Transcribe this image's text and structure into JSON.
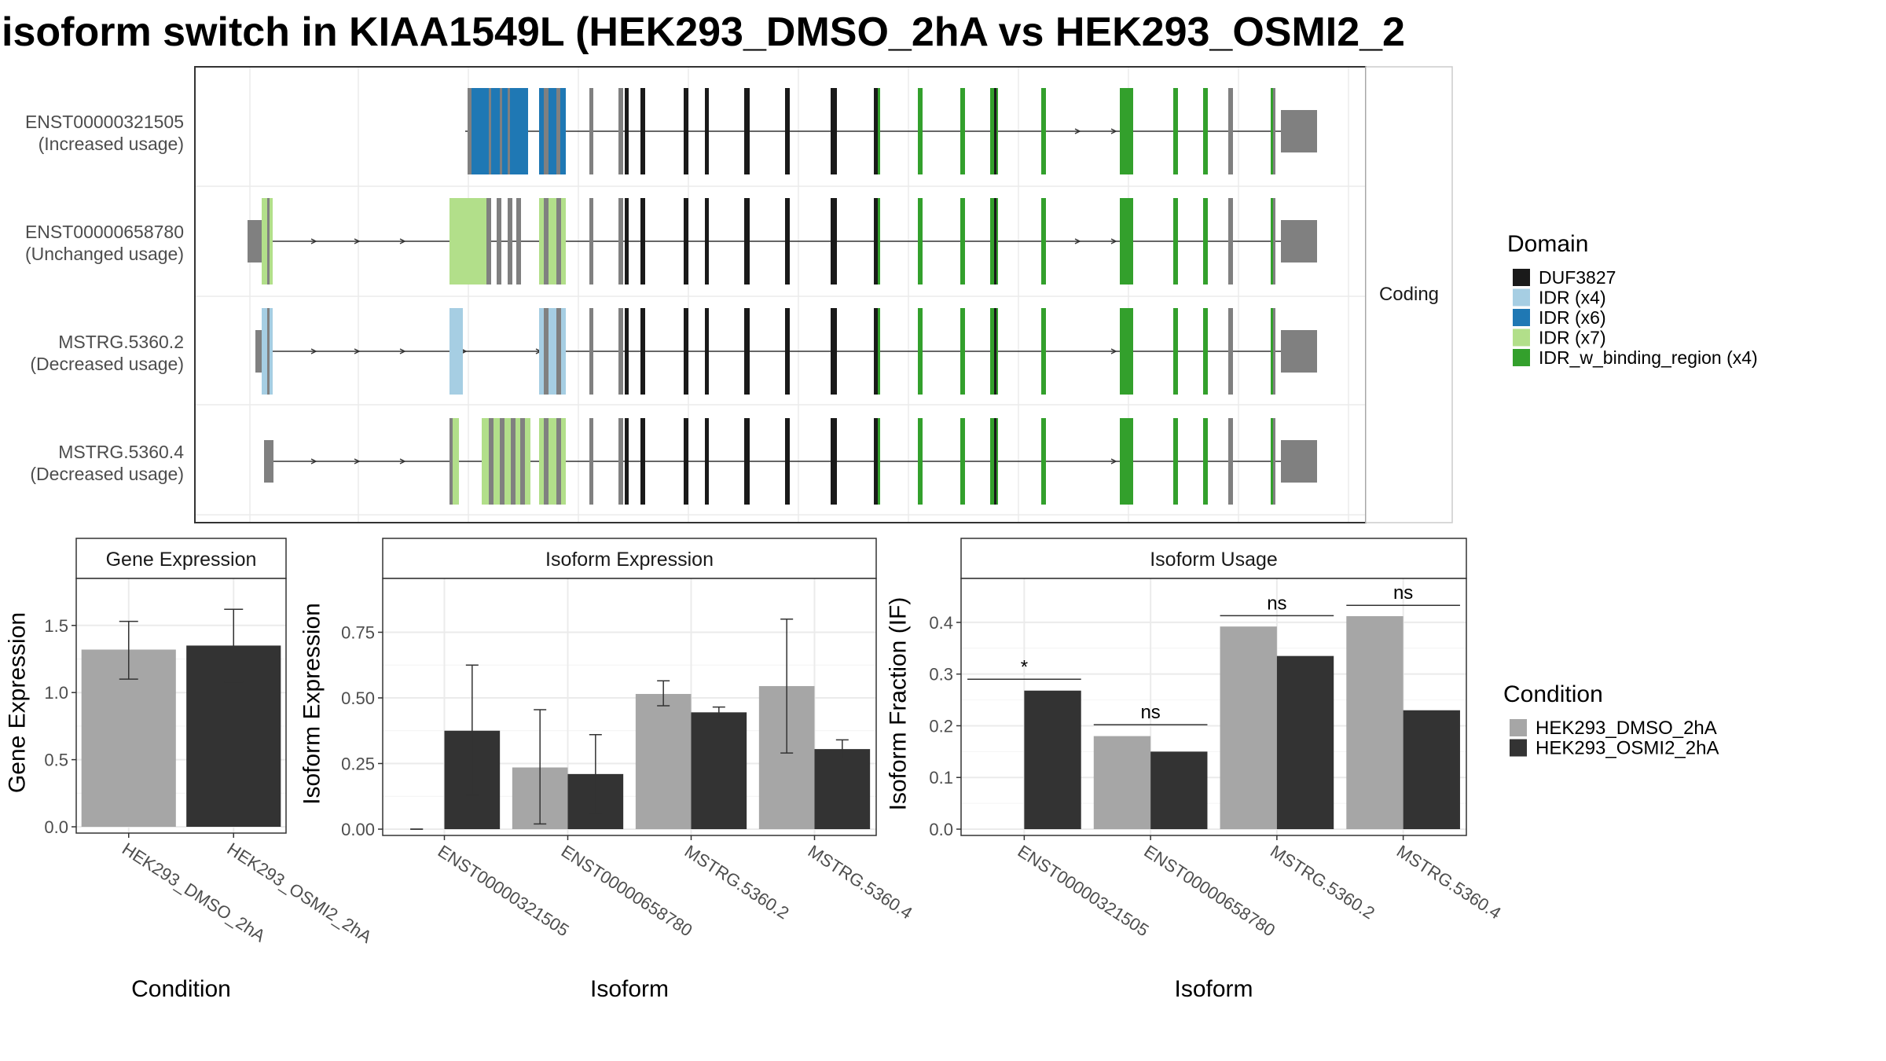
{
  "title": "isoform switch in KIAA1549L (HEK293_DMSO_2hA vs HEK293_OSMI2_2",
  "colors": {
    "dmso": "#a6a6a6",
    "osmi": "#333333",
    "panel_border": "#333333",
    "grid": "#ebebeb",
    "strip_bg": "#ffffff",
    "exon_gray": "#808080",
    "DUF3827": "#1a1a1a",
    "IDR_x4": "#a6cee3",
    "IDR_x6": "#1f78b4",
    "IDR_x7": "#b2df8a",
    "IDR_w_binding_region_x4": "#33a02c"
  },
  "structure": {
    "facet_label": "Coding",
    "transcripts": [
      {
        "id": "ENST00000321505",
        "label2": "(Increased usage)"
      },
      {
        "id": "ENST00000658780",
        "label2": "(Unchanged usage)"
      },
      {
        "id": "MSTRG.5360.2",
        "label2": "(Decreased usage)"
      },
      {
        "id": "MSTRG.5360.4",
        "label2": "(Decreased usage)"
      }
    ],
    "legend_title": "Domain",
    "legend_items": [
      {
        "label": "DUF3827",
        "color_key": "DUF3827"
      },
      {
        "label": "IDR (x4)",
        "color_key": "IDR_x4"
      },
      {
        "label": "IDR (x6)",
        "color_key": "IDR_x6"
      },
      {
        "label": "IDR (x7)",
        "color_key": "IDR_x7"
      },
      {
        "label": "IDR_w_binding_region (x4)",
        "color_key": "IDR_w_binding_region_x4"
      }
    ]
  },
  "condition_legend": {
    "title": "Condition",
    "items": [
      {
        "label": "HEK293_DMSO_2hA",
        "color_key": "dmso"
      },
      {
        "label": "HEK293_OSMI2_2hA",
        "color_key": "osmi"
      }
    ]
  },
  "chart_data": [
    {
      "type": "bar",
      "title": "Gene Expression",
      "xlabel": "Condition",
      "ylabel": "Gene Expression",
      "ylim": [
        0,
        1.85
      ],
      "yticks": [
        0.0,
        0.5,
        1.0,
        1.5
      ],
      "ytick_labels": [
        "0.0",
        "0.5",
        "1.0",
        "1.5"
      ],
      "categories": [
        "HEK293_DMSO_2hA",
        "HEK293_OSMI2_2hA"
      ],
      "values": [
        1.32,
        1.35
      ],
      "error_low": [
        1.1,
        1.08
      ],
      "error_high": [
        1.53,
        1.62
      ]
    },
    {
      "type": "bar",
      "title": "Isoform Expression",
      "xlabel": "Isoform",
      "ylabel": "Isoform Expression",
      "ylim": [
        0,
        0.955
      ],
      "yticks": [
        0.0,
        0.25,
        0.5,
        0.75
      ],
      "ytick_labels": [
        "0.00",
        "0.25",
        "0.50",
        "0.75"
      ],
      "categories": [
        "ENST00000321505",
        "ENST00000658780",
        "MSTRG.5360.2",
        "MSTRG.5360.4"
      ],
      "series": [
        {
          "name": "HEK293_DMSO_2hA",
          "values": [
            0.0,
            0.235,
            0.515,
            0.545
          ],
          "error_low": [
            0.0,
            0.02,
            0.47,
            0.29
          ],
          "error_high": [
            0.0,
            0.455,
            0.565,
            0.8
          ]
        },
        {
          "name": "HEK293_OSMI2_2hA",
          "values": [
            0.375,
            0.21,
            0.445,
            0.305
          ],
          "error_low": [
            0.13,
            0.06,
            0.425,
            0.27
          ],
          "error_high": [
            0.625,
            0.36,
            0.465,
            0.34
          ]
        }
      ]
    },
    {
      "type": "bar",
      "title": "Isoform Usage",
      "xlabel": "Isoform",
      "ylabel": "Isoform Fraction (IF)",
      "ylim": [
        0,
        0.485
      ],
      "yticks": [
        0.0,
        0.1,
        0.2,
        0.3,
        0.4
      ],
      "ytick_labels": [
        "0.0",
        "0.1",
        "0.2",
        "0.3",
        "0.4"
      ],
      "categories": [
        "ENST00000321505",
        "ENST00000658780",
        "MSTRG.5360.2",
        "MSTRG.5360.4"
      ],
      "series": [
        {
          "name": "HEK293_DMSO_2hA",
          "values": [
            0.0,
            0.18,
            0.392,
            0.412
          ]
        },
        {
          "name": "HEK293_OSMI2_2hA",
          "values": [
            0.268,
            0.15,
            0.335,
            0.23
          ]
        }
      ],
      "annotations": [
        {
          "category": "ENST00000321505",
          "text": "*",
          "y": 0.29
        },
        {
          "category": "ENST00000658780",
          "text": "ns",
          "y": 0.202
        },
        {
          "category": "MSTRG.5360.2",
          "text": "ns",
          "y": 0.413
        },
        {
          "category": "MSTRG.5360.4",
          "text": "ns",
          "y": 0.433
        }
      ]
    }
  ]
}
